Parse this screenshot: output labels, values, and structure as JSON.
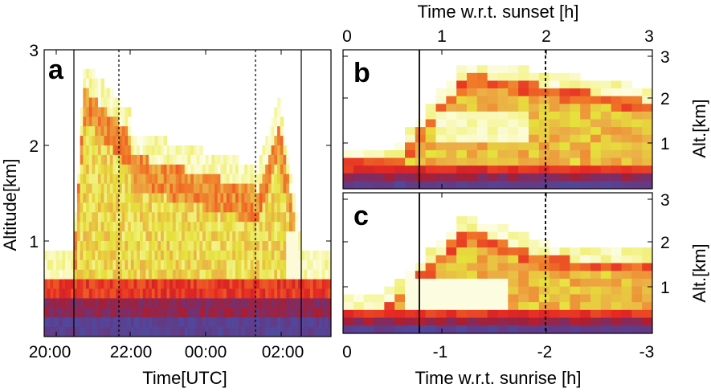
{
  "chart_data": [
    {
      "panel": "a",
      "type": "heatmap",
      "xlabel": "Time[UTC]",
      "ylabel": "Altitude[km]",
      "xticks": [
        "20:00",
        "22:00",
        "00:00",
        "02:00"
      ],
      "yticks": [
        "1",
        "2",
        "3"
      ],
      "ylim": [
        0,
        3
      ],
      "vlines": {
        "solid": [
          "20:40",
          "02:40"
        ],
        "dashed": [
          "21:50",
          "01:30"
        ]
      },
      "grid": false
    },
    {
      "panel": "b",
      "type": "heatmap",
      "xlabel_top": "Time w.r.t. sunset [h]",
      "ylabel": "Alt.[km]",
      "xticks": [
        "0",
        "1",
        "2",
        "3"
      ],
      "yticks": [
        "1",
        "2",
        "3"
      ],
      "xlim": [
        0,
        3
      ],
      "ylim": [
        0,
        3.2
      ],
      "vlines": {
        "solid": [
          0.77
        ],
        "dashed": [
          2.0
        ]
      },
      "grid": false
    },
    {
      "panel": "c",
      "type": "heatmap",
      "xlabel": "Time w.r.t. sunrise [h]",
      "ylabel": "Alt.[km]",
      "xticks": [
        "0",
        "-1",
        "-2",
        "-3"
      ],
      "yticks": [
        "1",
        "2",
        "3"
      ],
      "xlim": [
        0,
        -3
      ],
      "ylim": [
        0,
        3.2
      ],
      "vlines": {
        "solid": [
          -0.77
        ],
        "dashed": [
          -2.0
        ]
      },
      "grid": false
    }
  ],
  "colors": {
    "low": "#3a4aa8",
    "mid_low": "#e02020",
    "mid": "#f07020",
    "mid_high": "#f0d040",
    "high": "#ffffff"
  },
  "labels": {
    "a": "a",
    "b": "b",
    "c": "c",
    "a_xlabel": "Time[UTC]",
    "a_ylabel": "Altitude[km]",
    "top_xlabel": "Time w.r.t. sunset [h]",
    "bottom_xlabel": "Time w.r.t. sunrise [h]",
    "b_ylabel": "Alt.[km]",
    "c_ylabel": "Alt.[km]"
  },
  "ticks": {
    "a_y": [
      "3",
      "2",
      "1"
    ],
    "a_x": [
      "20:00",
      "22:00",
      "00:00",
      "02:00"
    ],
    "top_x": [
      "0",
      "1",
      "2",
      "3"
    ],
    "bottom_x": [
      "0",
      "-1",
      "-2",
      "-3"
    ],
    "b_y": [
      "3",
      "2",
      "1"
    ],
    "c_y": [
      "3",
      "2",
      "1"
    ]
  }
}
